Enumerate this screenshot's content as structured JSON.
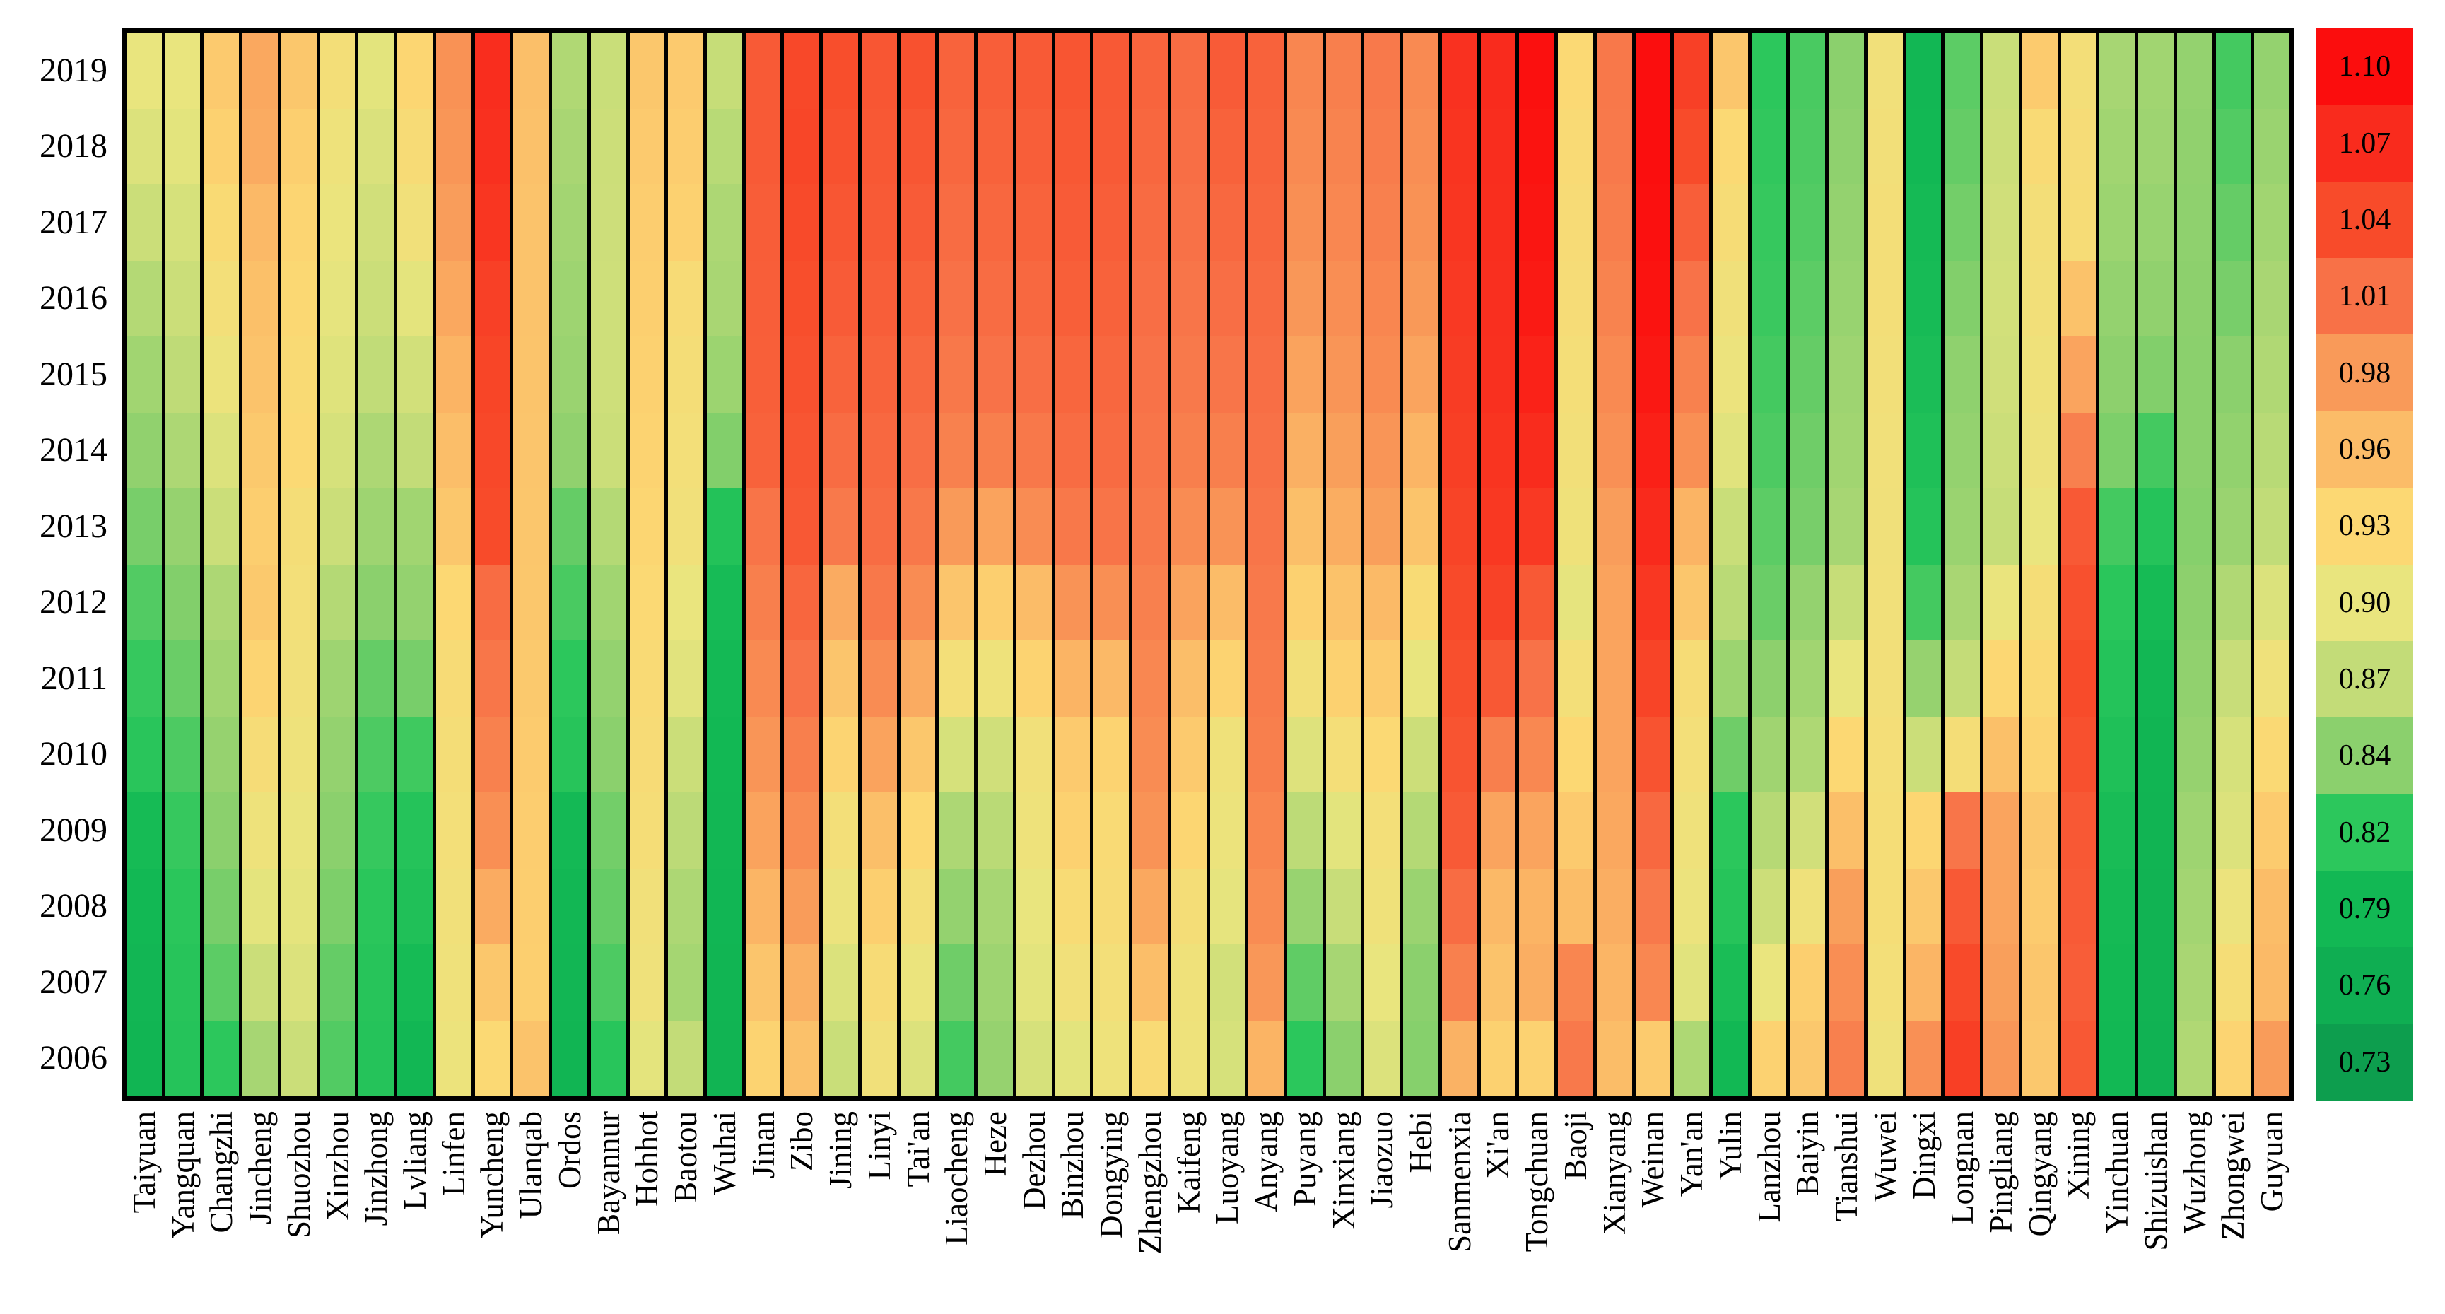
{
  "chart_data": {
    "type": "heatmap",
    "title": "",
    "xlabel": "",
    "ylabel": "",
    "legend_position": "right",
    "grid": "black vertical separators between city columns, no horizontal separators",
    "value_range": [
      0.73,
      1.1
    ],
    "years": [
      "2019",
      "2018",
      "2017",
      "2016",
      "2015",
      "2014",
      "2013",
      "2012",
      "2011",
      "2010",
      "2009",
      "2008",
      "2007",
      "2006"
    ],
    "cities": [
      "Taiyuan",
      "Yangquan",
      "Changzhi",
      "Jincheng",
      "Shuozhou",
      "Xinzhou",
      "Jinzhong",
      "Lvliang",
      "Linfen",
      "Yuncheng",
      "Ulanqab",
      "Ordos",
      "Bayannur",
      "Hohhot",
      "Baotou",
      "Wuhai",
      "Jinan",
      "Zibo",
      "Jining",
      "Linyi",
      "Tai'an",
      "Liaocheng",
      "Heze",
      "Dezhou",
      "Binzhou",
      "Dongying",
      "Zhengzhou",
      "Kaifeng",
      "Luoyang",
      "Anyang",
      "Puyang",
      "Xinxiang",
      "Jiaozuo",
      "Hebi",
      "Sanmenxia",
      "Xi'an",
      "Tongchuan",
      "Baoji",
      "Xianyang",
      "Weinan",
      "Yan'an",
      "Yulin",
      "Lanzhou",
      "Baiyin",
      "Tianshui",
      "Wuwei",
      "Dingxi",
      "Longnan",
      "Pingliang",
      "Qingyang",
      "Xining",
      "Yinchuan",
      "Shizuishan",
      "Wuzhong",
      "Zhongwei",
      "Guyuan"
    ],
    "values": [
      [
        0.9,
        0.9,
        0.945,
        0.972,
        0.948,
        0.916,
        0.895,
        0.932,
        0.986,
        1.068,
        0.957,
        0.86,
        0.875,
        0.948,
        0.945,
        0.872,
        1.028,
        1.043,
        1.038,
        1.031,
        1.035,
        1.021,
        1.025,
        1.028,
        1.032,
        1.029,
        1.02,
        1.014,
        1.027,
        1.022,
        0.995,
        1.0,
        1.004,
        0.992,
        1.064,
        1.07,
        1.097,
        0.928,
        1.005,
        1.099,
        1.05,
        0.949,
        0.82,
        0.826,
        0.84,
        0.912,
        0.788,
        0.83,
        0.875,
        0.944,
        0.916,
        0.855,
        0.852,
        0.845,
        0.825,
        0.845
      ],
      [
        0.89,
        0.895,
        0.938,
        0.97,
        0.94,
        0.908,
        0.888,
        0.922,
        0.983,
        1.065,
        0.955,
        0.856,
        0.877,
        0.945,
        0.942,
        0.864,
        1.028,
        1.045,
        1.035,
        1.03,
        1.031,
        1.018,
        1.022,
        1.025,
        1.03,
        1.028,
        1.018,
        1.012,
        1.022,
        1.02,
        0.992,
        0.997,
        1.002,
        0.989,
        1.062,
        1.068,
        1.094,
        0.925,
        1.004,
        1.099,
        1.04,
        0.928,
        0.821,
        0.827,
        0.842,
        0.914,
        0.79,
        0.832,
        0.877,
        0.925,
        0.92,
        0.852,
        0.85,
        0.843,
        0.828,
        0.848
      ],
      [
        0.876,
        0.885,
        0.926,
        0.962,
        0.933,
        0.903,
        0.881,
        0.912,
        0.978,
        1.06,
        0.953,
        0.853,
        0.878,
        0.942,
        0.938,
        0.858,
        1.026,
        1.041,
        1.031,
        1.028,
        1.027,
        1.014,
        1.018,
        1.021,
        1.027,
        1.025,
        1.015,
        1.01,
        1.017,
        1.018,
        0.988,
        0.994,
        0.999,
        0.986,
        1.06,
        1.067,
        1.091,
        0.922,
        1.001,
        1.097,
        1.025,
        0.921,
        0.822,
        0.828,
        0.845,
        0.916,
        0.793,
        0.835,
        0.88,
        0.916,
        0.921,
        0.849,
        0.847,
        0.842,
        0.832,
        0.852
      ],
      [
        0.862,
        0.876,
        0.915,
        0.956,
        0.929,
        0.898,
        0.876,
        0.896,
        0.972,
        1.05,
        0.952,
        0.85,
        0.879,
        0.94,
        0.922,
        0.856,
        1.025,
        1.038,
        1.027,
        1.025,
        1.022,
        1.01,
        1.014,
        1.017,
        1.024,
        1.022,
        1.012,
        1.007,
        1.012,
        1.015,
        0.982,
        0.989,
        0.995,
        0.981,
        1.057,
        1.066,
        1.087,
        0.92,
        0.997,
        1.094,
        1.009,
        0.911,
        0.823,
        0.83,
        0.847,
        0.916,
        0.796,
        0.838,
        0.882,
        0.914,
        0.954,
        0.845,
        0.843,
        0.841,
        0.836,
        0.856
      ],
      [
        0.852,
        0.868,
        0.905,
        0.952,
        0.926,
        0.892,
        0.869,
        0.882,
        0.965,
        1.046,
        0.951,
        0.848,
        0.879,
        0.938,
        0.918,
        0.849,
        1.024,
        1.035,
        1.021,
        1.021,
        1.017,
        1.005,
        1.009,
        1.012,
        1.019,
        1.018,
        1.009,
        1.004,
        1.007,
        1.012,
        0.975,
        0.984,
        0.991,
        0.974,
        1.054,
        1.065,
        1.079,
        0.917,
        0.992,
        1.089,
        0.998,
        0.904,
        0.825,
        0.832,
        0.85,
        0.914,
        0.8,
        0.842,
        0.88,
        0.91,
        0.974,
        0.841,
        0.838,
        0.84,
        0.84,
        0.86
      ],
      [
        0.843,
        0.858,
        0.89,
        0.946,
        0.928,
        0.885,
        0.858,
        0.87,
        0.958,
        1.043,
        0.95,
        0.843,
        0.876,
        0.935,
        0.915,
        0.838,
        1.022,
        1.032,
        1.014,
        1.017,
        1.012,
        0.998,
        1.0,
        1.005,
        1.014,
        1.015,
        1.007,
        1.0,
        1.0,
        1.01,
        0.967,
        0.977,
        0.984,
        0.964,
        1.051,
        1.062,
        1.069,
        0.914,
        0.987,
        1.081,
        0.988,
        0.894,
        0.827,
        0.834,
        0.852,
        0.912,
        0.805,
        0.845,
        0.876,
        0.906,
        0.999,
        0.837,
        0.825,
        0.84,
        0.844,
        0.864
      ],
      [
        0.836,
        0.846,
        0.876,
        0.941,
        0.918,
        0.876,
        0.85,
        0.852,
        0.948,
        1.04,
        0.949,
        0.832,
        0.862,
        0.932,
        0.912,
        0.81,
        1.008,
        1.03,
        1.004,
        1.014,
        1.005,
        0.98,
        0.975,
        0.99,
        1.005,
        1.008,
        1.004,
        0.99,
        0.985,
        1.007,
        0.957,
        0.969,
        0.977,
        0.951,
        1.047,
        1.058,
        1.057,
        0.91,
        0.978,
        1.071,
        0.965,
        0.875,
        0.83,
        0.836,
        0.855,
        0.911,
        0.812,
        0.848,
        0.872,
        0.901,
        1.029,
        0.825,
        0.812,
        0.839,
        0.848,
        0.869
      ],
      [
        0.828,
        0.838,
        0.858,
        0.946,
        0.915,
        0.862,
        0.84,
        0.845,
        0.93,
        1.014,
        0.948,
        0.826,
        0.852,
        0.928,
        0.901,
        0.796,
        1.0,
        1.019,
        0.97,
        1.005,
        0.99,
        0.95,
        0.94,
        0.96,
        0.985,
        0.988,
        0.999,
        0.975,
        0.96,
        1.004,
        0.937,
        0.954,
        0.961,
        0.924,
        1.041,
        1.048,
        1.029,
        0.898,
        0.975,
        1.059,
        0.949,
        0.865,
        0.833,
        0.845,
        0.872,
        0.912,
        0.825,
        0.856,
        0.902,
        0.919,
        1.036,
        0.818,
        0.795,
        0.841,
        0.86,
        0.889
      ],
      [
        0.822,
        0.833,
        0.852,
        0.934,
        0.912,
        0.85,
        0.832,
        0.836,
        0.922,
        1.006,
        0.946,
        0.82,
        0.845,
        0.925,
        0.894,
        0.792,
        0.992,
        1.009,
        0.95,
        0.99,
        0.97,
        0.915,
        0.908,
        0.935,
        0.965,
        0.962,
        0.994,
        0.958,
        0.935,
        1.002,
        0.914,
        0.937,
        0.944,
        0.899,
        1.037,
        1.03,
        1.009,
        0.915,
        0.974,
        1.047,
        0.921,
        0.849,
        0.841,
        0.852,
        0.9,
        0.914,
        0.846,
        0.871,
        0.931,
        0.927,
        1.04,
        0.811,
        0.788,
        0.843,
        0.874,
        0.909
      ],
      [
        0.816,
        0.827,
        0.846,
        0.92,
        0.908,
        0.845,
        0.827,
        0.824,
        0.918,
        0.998,
        0.944,
        0.814,
        0.84,
        0.922,
        0.876,
        0.789,
        0.984,
        1.0,
        0.934,
        0.975,
        0.948,
        0.885,
        0.88,
        0.912,
        0.945,
        0.935,
        0.99,
        0.945,
        0.91,
        1.0,
        0.891,
        0.917,
        0.928,
        0.877,
        1.033,
        1.0,
        0.993,
        0.93,
        0.974,
        1.034,
        0.915,
        0.834,
        0.851,
        0.859,
        0.93,
        0.917,
        0.876,
        0.918,
        0.956,
        0.934,
        1.036,
        0.805,
        0.782,
        0.846,
        0.885,
        0.927
      ],
      [
        0.795,
        0.822,
        0.84,
        0.908,
        0.902,
        0.84,
        0.822,
        0.812,
        0.915,
        0.988,
        0.942,
        0.792,
        0.835,
        0.919,
        0.866,
        0.786,
        0.975,
        0.99,
        0.915,
        0.957,
        0.93,
        0.858,
        0.865,
        0.908,
        0.938,
        0.925,
        0.985,
        0.932,
        0.905,
        0.995,
        0.867,
        0.895,
        0.915,
        0.862,
        1.028,
        0.974,
        0.974,
        0.945,
        0.972,
        1.017,
        0.909,
        0.819,
        0.863,
        0.881,
        0.957,
        0.919,
        0.932,
        1.007,
        0.974,
        0.947,
        1.03,
        0.798,
        0.778,
        0.85,
        0.89,
        0.944
      ],
      [
        0.79,
        0.818,
        0.836,
        0.896,
        0.897,
        0.837,
        0.818,
        0.806,
        0.912,
        0.97,
        0.941,
        0.788,
        0.832,
        0.912,
        0.858,
        0.784,
        0.964,
        0.979,
        0.904,
        0.94,
        0.915,
        0.845,
        0.855,
        0.9,
        0.924,
        0.922,
        0.972,
        0.918,
        0.898,
        0.99,
        0.847,
        0.874,
        0.91,
        0.848,
        1.014,
        0.962,
        0.965,
        0.959,
        0.968,
        1.004,
        0.904,
        0.813,
        0.877,
        0.909,
        0.977,
        0.919,
        0.947,
        1.029,
        0.974,
        0.944,
        1.028,
        0.794,
        0.776,
        0.853,
        0.904,
        0.959
      ],
      [
        0.785,
        0.814,
        0.83,
        0.876,
        0.89,
        0.832,
        0.814,
        0.795,
        0.909,
        0.948,
        0.94,
        0.785,
        0.827,
        0.909,
        0.854,
        0.781,
        0.95,
        0.967,
        0.889,
        0.922,
        0.903,
        0.834,
        0.85,
        0.895,
        0.912,
        0.915,
        0.958,
        0.91,
        0.882,
        0.982,
        0.831,
        0.855,
        0.9,
        0.84,
        0.999,
        0.952,
        0.968,
        0.995,
        0.964,
        0.994,
        0.894,
        0.799,
        0.901,
        0.94,
        0.989,
        0.915,
        0.964,
        1.041,
        0.977,
        0.949,
        1.026,
        0.791,
        0.775,
        0.856,
        0.919,
        0.961
      ],
      [
        0.78,
        0.812,
        0.82,
        0.855,
        0.876,
        0.828,
        0.812,
        0.788,
        0.905,
        0.928,
        0.952,
        0.782,
        0.815,
        0.896,
        0.87,
        0.779,
        0.935,
        0.955,
        0.875,
        0.912,
        0.89,
        0.825,
        0.846,
        0.885,
        0.895,
        0.908,
        0.925,
        0.908,
        0.885,
        0.965,
        0.819,
        0.84,
        0.89,
        0.839,
        0.966,
        0.937,
        0.936,
        1.004,
        0.959,
        0.944,
        0.859,
        0.789,
        0.936,
        0.947,
        0.999,
        0.909,
        0.987,
        1.051,
        0.982,
        0.947,
        1.03,
        0.789,
        0.773,
        0.86,
        0.934,
        0.979
      ]
    ],
    "colorbar": {
      "tick_labels": [
        "1.10",
        "1.07",
        "1.04",
        "1.01",
        "0.98",
        "0.96",
        "0.93",
        "0.90",
        "0.87",
        "0.84",
        "0.82",
        "0.79",
        "0.76",
        "0.73"
      ],
      "tick_values": [
        1.1,
        1.07,
        1.04,
        1.01,
        0.98,
        0.96,
        0.93,
        0.9,
        0.87,
        0.84,
        0.82,
        0.79,
        0.76,
        0.73
      ],
      "block_colors": [
        "#fb0d0d",
        "#f92b1d",
        "#f84b2a",
        "#f87147",
        "#f99a59",
        "#fbbc68",
        "#fcd873",
        "#e9e57e",
        "#c3dc78",
        "#8bd06d",
        "#2cc75c",
        "#12b854",
        "#0fae52",
        "#0d9e4e"
      ]
    },
    "colors": {
      "cell_separator": "#000000",
      "plot_border": "#000000",
      "background": "#ffffff",
      "text": "#000000"
    }
  }
}
